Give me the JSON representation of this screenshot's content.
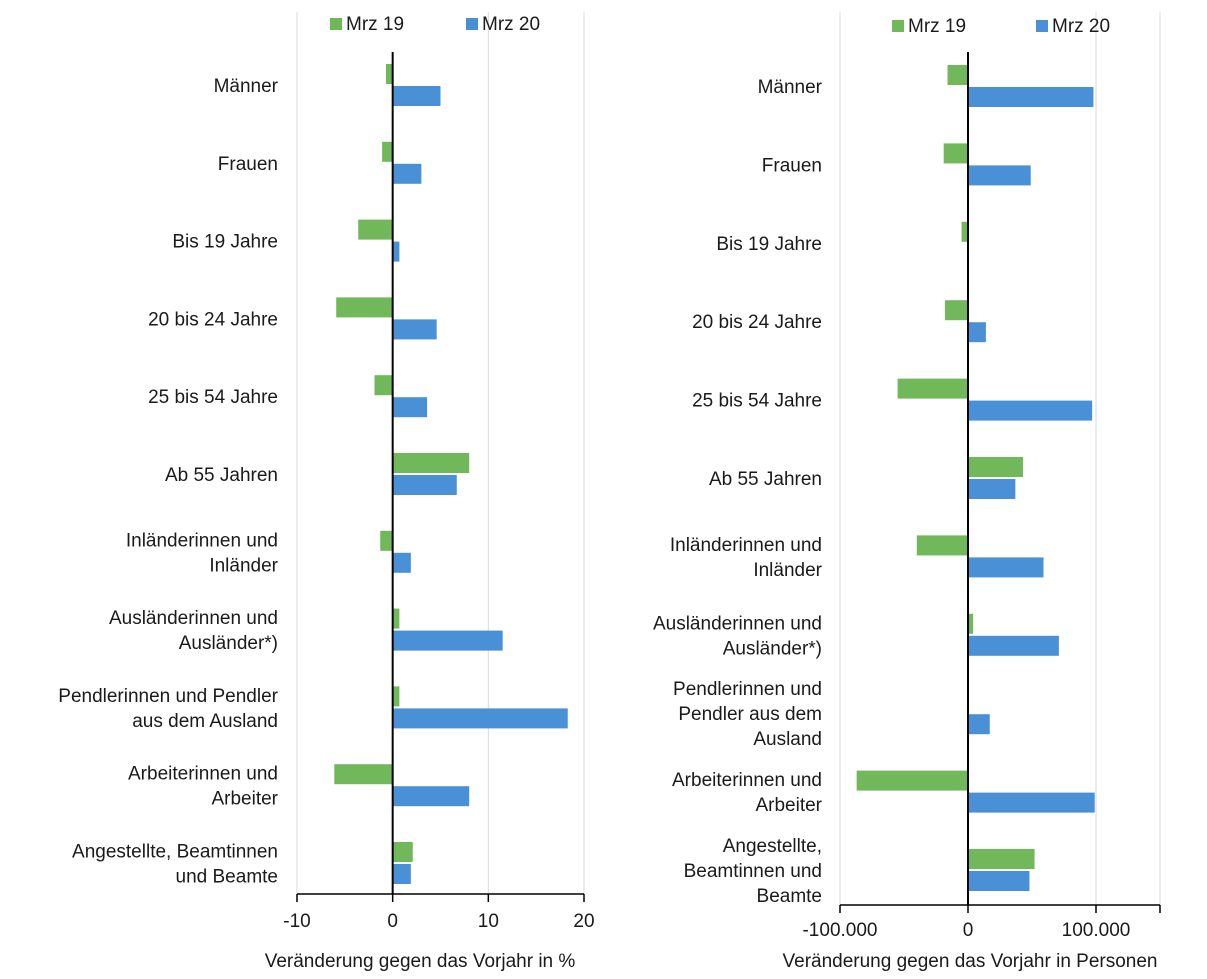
{
  "chart_data": [
    {
      "type": "bar",
      "orientation": "horizontal",
      "categories": [
        [
          "Männer"
        ],
        [
          "Frauen"
        ],
        [
          "Bis 19 Jahre"
        ],
        [
          "20 bis 24 Jahre"
        ],
        [
          "25 bis 54 Jahre"
        ],
        [
          "Ab 55 Jahren"
        ],
        [
          "Inländerinnen und",
          "Inländer"
        ],
        [
          "Ausländerinnen und",
          "Ausländer*)"
        ],
        [
          "Pendlerinnen und Pendler",
          "aus dem Ausland"
        ],
        [
          "Arbeiterinnen und",
          "Arbeiter"
        ],
        [
          "Angestellte, Beamtinnen",
          "und Beamte"
        ]
      ],
      "series": [
        {
          "name": "Mrz 19",
          "color": "#70b85a",
          "values": [
            -0.7,
            -1.1,
            -3.6,
            -5.9,
            -1.9,
            8.0,
            -1.3,
            0.7,
            0.7,
            -6.1,
            2.1
          ]
        },
        {
          "name": "Mrz 20",
          "color": "#4a90d6",
          "values": [
            5.0,
            3.0,
            0.7,
            4.6,
            3.6,
            6.7,
            1.9,
            11.5,
            18.3,
            8.0,
            1.9
          ]
        }
      ],
      "xlim": [
        -10,
        20
      ],
      "xticks": [
        "-10",
        "0",
        "10",
        "20"
      ],
      "xlabel": "Veränderung gegen das Vorjahr in %",
      "ylabel": "",
      "title": "",
      "grid": true,
      "legend": "top"
    },
    {
      "type": "bar",
      "orientation": "horizontal",
      "categories": [
        [
          "Männer"
        ],
        [
          "Frauen"
        ],
        [
          "Bis 19 Jahre"
        ],
        [
          "20 bis 24 Jahre"
        ],
        [
          "25 bis 54 Jahre"
        ],
        [
          "Ab 55 Jahren"
        ],
        [
          "Inländerinnen und",
          "Inländer"
        ],
        [
          "Ausländerinnen und",
          "Ausländer*)"
        ],
        [
          "Pendlerinnen und",
          "Pendler aus dem",
          "Ausland"
        ],
        [
          "Arbeiterinnen und",
          "Arbeiter"
        ],
        [
          "Angestellte,",
          "Beamtinnen und",
          "Beamte"
        ]
      ],
      "series": [
        {
          "name": "Mrz 19",
          "color": "#70b85a",
          "values": [
            -16000,
            -19000,
            -5000,
            -18000,
            -55000,
            43000,
            -40000,
            4000,
            0,
            -87000,
            52000
          ]
        },
        {
          "name": "Mrz 20",
          "color": "#4a90d6",
          "values": [
            98000,
            49000,
            0,
            14000,
            97000,
            37000,
            59000,
            71000,
            17000,
            99000,
            48000
          ]
        }
      ],
      "xlim": [
        -100000,
        150000
      ],
      "xticks": [
        "-100.000",
        "0",
        "100.000"
      ],
      "xlabel": "Veränderung gegen das Vorjahr in Personen",
      "ylabel": "",
      "title": "",
      "grid": true,
      "legend": "top"
    }
  ]
}
